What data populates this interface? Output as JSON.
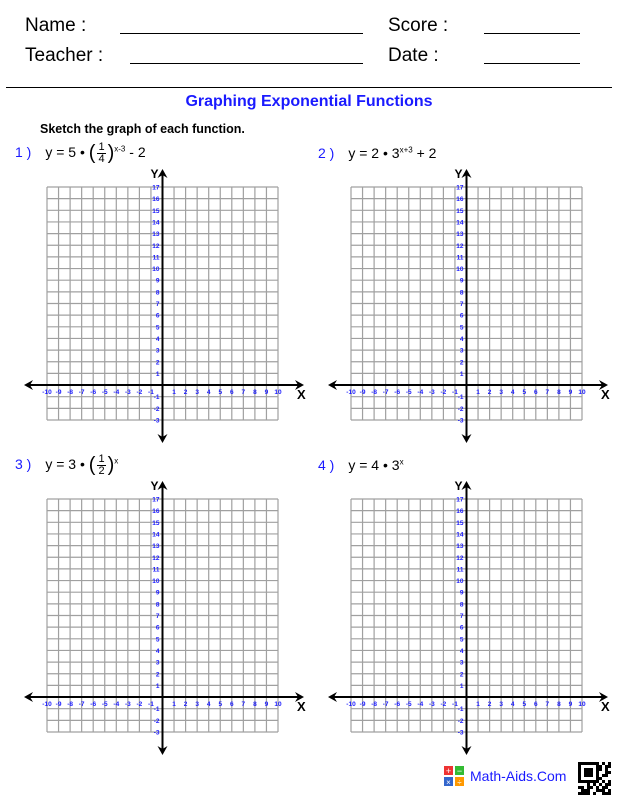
{
  "header": {
    "name_label": "Name :",
    "teacher_label": "Teacher :",
    "score_label": "Score :",
    "date_label": "Date :"
  },
  "title": "Graphing Exponential Functions",
  "instructions": "Sketch the graph of each function.",
  "problems": [
    {
      "number": "1 )",
      "prefix": "y = 5 •",
      "frac_num": "1",
      "frac_den": "4",
      "exponent": "x-3",
      "suffix": "- 2"
    },
    {
      "number": "2 )",
      "prefix": "y = 2 • 3",
      "exponent": "x+3",
      "suffix": "+ 2"
    },
    {
      "number": "3 )",
      "prefix": "y = 3 •",
      "frac_num": "1",
      "frac_den": "2",
      "exponent": "x",
      "suffix": ""
    },
    {
      "number": "4 )",
      "prefix": "y = 4 • 3",
      "exponent": "x",
      "suffix": ""
    }
  ],
  "grid": {
    "x_range": [
      -10,
      10
    ],
    "y_range": [
      -3,
      17
    ],
    "x_axis_label": "X",
    "y_axis_label": "Y",
    "tick_color": "#1a1aff",
    "grid_color": "#a0a0a0"
  },
  "footer": {
    "brand": "Math-Aids.Com"
  }
}
